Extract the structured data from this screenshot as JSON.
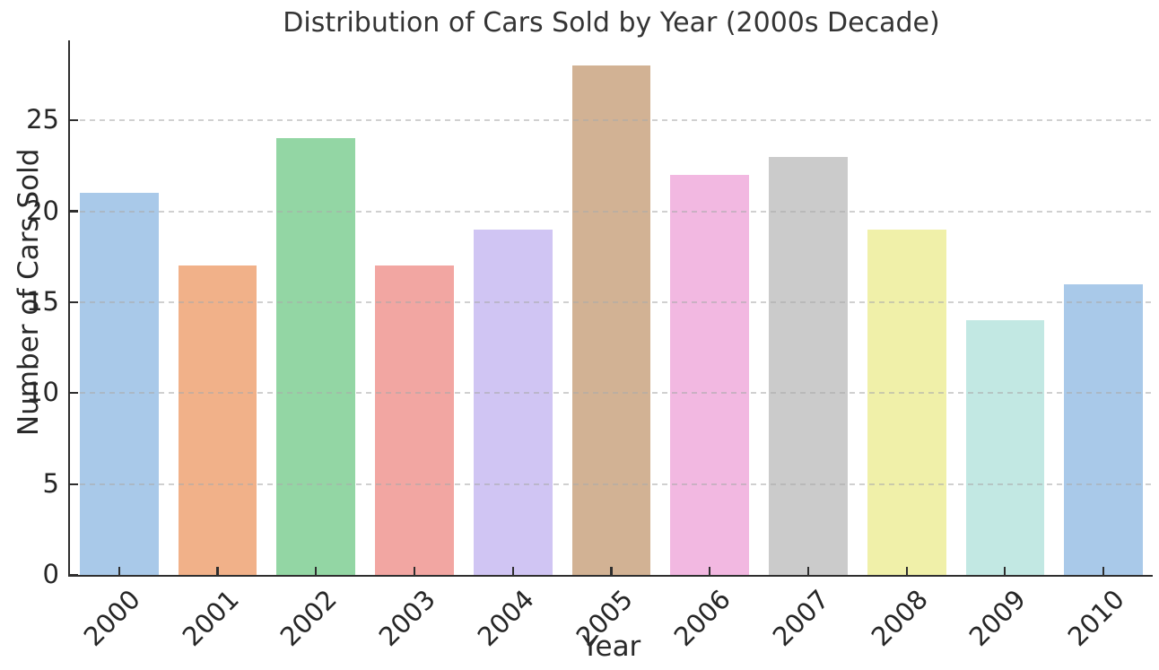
{
  "chart_data": {
    "type": "bar",
    "title": "Distribution of Cars Sold by Year (2000s Decade)",
    "xlabel": "Year",
    "ylabel": "Number of Cars Sold",
    "categories": [
      "2000",
      "2001",
      "2002",
      "2003",
      "2004",
      "2005",
      "2006",
      "2007",
      "2008",
      "2009",
      "2010"
    ],
    "values": [
      21,
      17,
      24,
      17,
      19,
      28,
      22,
      23,
      19,
      14,
      16
    ],
    "bar_colors": [
      "#a9c9e9",
      "#f1b189",
      "#93d6a4",
      "#f2a6a2",
      "#d0c5f3",
      "#d2b294",
      "#f2b8e1",
      "#cbcbcb",
      "#f0f0a9",
      "#c2e8e3",
      "#a9c9e9"
    ],
    "yticks": [
      0,
      5,
      10,
      15,
      20,
      25
    ],
    "ylim": [
      0,
      29.4
    ],
    "grid": "horizontal-dashed",
    "grid_color": "#c8c8c8",
    "x_tick_rotation": 45,
    "legend": "none",
    "axis_color": "#2e2e2e",
    "text_color": "#262626",
    "background_color": "#ffffff"
  }
}
